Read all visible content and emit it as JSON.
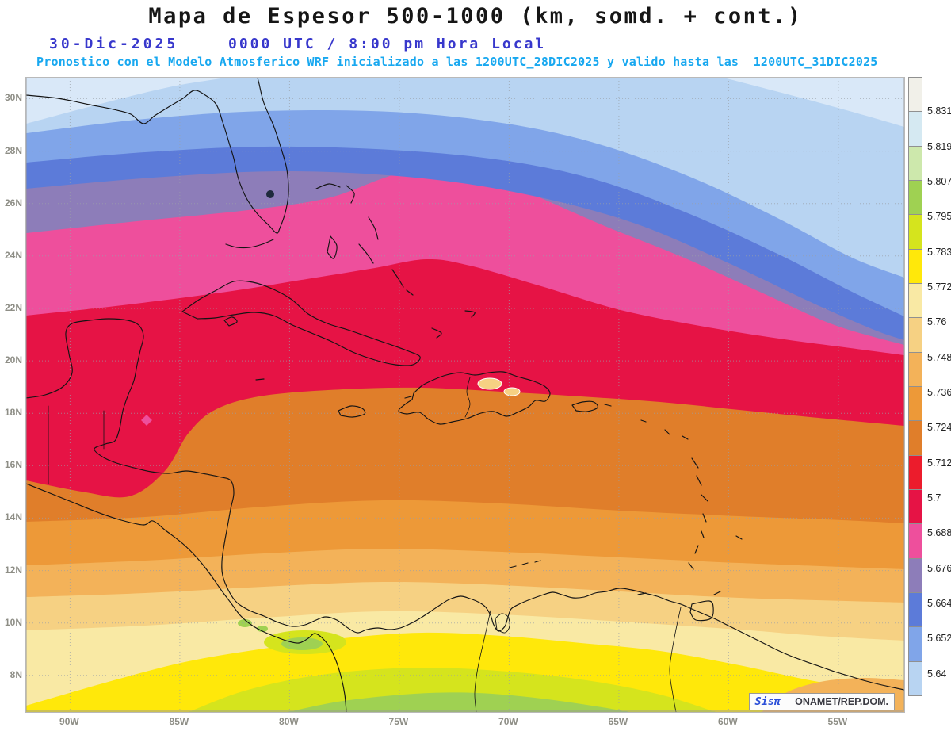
{
  "header": {
    "title": "Mapa de Espesor 500-1000 (km, somd. + cont.)",
    "date": "30-Dic-2025",
    "time": "0000 UTC / 8:00 pm Hora Local",
    "forecast": "Pronostico con el Modelo Atmosferico WRF inicializado a las 1200UTC_28DIC2025 y valido hasta las  1200UTC_31DIC2025"
  },
  "axes": {
    "lat_labels": [
      "30N",
      "28N",
      "26N",
      "24N",
      "22N",
      "20N",
      "18N",
      "16N",
      "14N",
      "12N",
      "10N",
      "8N"
    ],
    "lon_labels": [
      "90W",
      "85W",
      "80W",
      "75W",
      "70W",
      "65W",
      "60W",
      "55W"
    ]
  },
  "colorbar": {
    "labels": [
      "5.831",
      "5.819",
      "5.807",
      "5.795",
      "5.783",
      "5.772",
      "5.76",
      "5.748",
      "5.736",
      "5.724",
      "5.712",
      "5.7",
      "5.688",
      "5.676",
      "5.664",
      "5.652",
      "5.64"
    ],
    "colors": [
      "#f1f0e9",
      "#d5e9f2",
      "#cde8ac",
      "#9fd152",
      "#d5e41d",
      "#ffe80a",
      "#f9e9a4",
      "#f6d183",
      "#f3b259",
      "#ed9938",
      "#e07e2a",
      "#ec1c2c",
      "#e61345",
      "#ee4f9c",
      "#8d7db9",
      "#5c7bd9",
      "#80a5e9",
      "#b8d4f2"
    ],
    "extra_light_blue": "#d9e8f8"
  },
  "credit": {
    "brand": "Sisπ",
    "dash": "–",
    "org": "ONAMET/REP.DOM."
  },
  "theme": {
    "page_bg": "#ffffff",
    "title_color": "#161616",
    "date_color": "#3838cc",
    "forecast_color": "#18a8f0",
    "axis_color": "#8e8e86",
    "grid_color": "#9aa0a8",
    "coast_color": "#141414",
    "credit_brand_color": "#2b4fd8",
    "credit_org_color": "#3c3c44"
  }
}
